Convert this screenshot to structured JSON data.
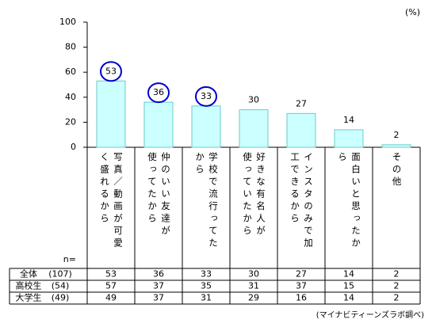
{
  "chart_data": {
    "type": "bar",
    "unit_label": "(%)",
    "categories": [
      "写真／動画が可愛\nく盛れるから",
      "仲のいい友達が\n使ってたから",
      "学校で流行ってた\nから",
      "好きな有名人が\n使っていたから",
      "インスタのみで加\n工できるから",
      "面白いと思ったか\nら",
      "その他"
    ],
    "values": [
      53,
      36,
      33,
      30,
      27,
      14,
      2
    ],
    "color": "#ccffff",
    "edge_color": "#66cccc",
    "circled": [
      0,
      1,
      2
    ],
    "circle_color": "#0000cc",
    "ylim": [
      0,
      100
    ],
    "yticks": [
      0,
      20,
      40,
      60,
      80,
      100
    ],
    "n_label": "n=",
    "table": [
      {
        "label": "全体",
        "n": "(107)"
      },
      {
        "label": "高校生",
        "n": "(54)",
        "values": [
          57,
          37,
          35,
          31,
          37,
          15,
          2
        ]
      },
      {
        "label": "大学生",
        "n": "(49)",
        "values": [
          49,
          37,
          31,
          29,
          16,
          14,
          2
        ]
      }
    ],
    "source": "(マイナビティーンズラボ調べ)"
  }
}
